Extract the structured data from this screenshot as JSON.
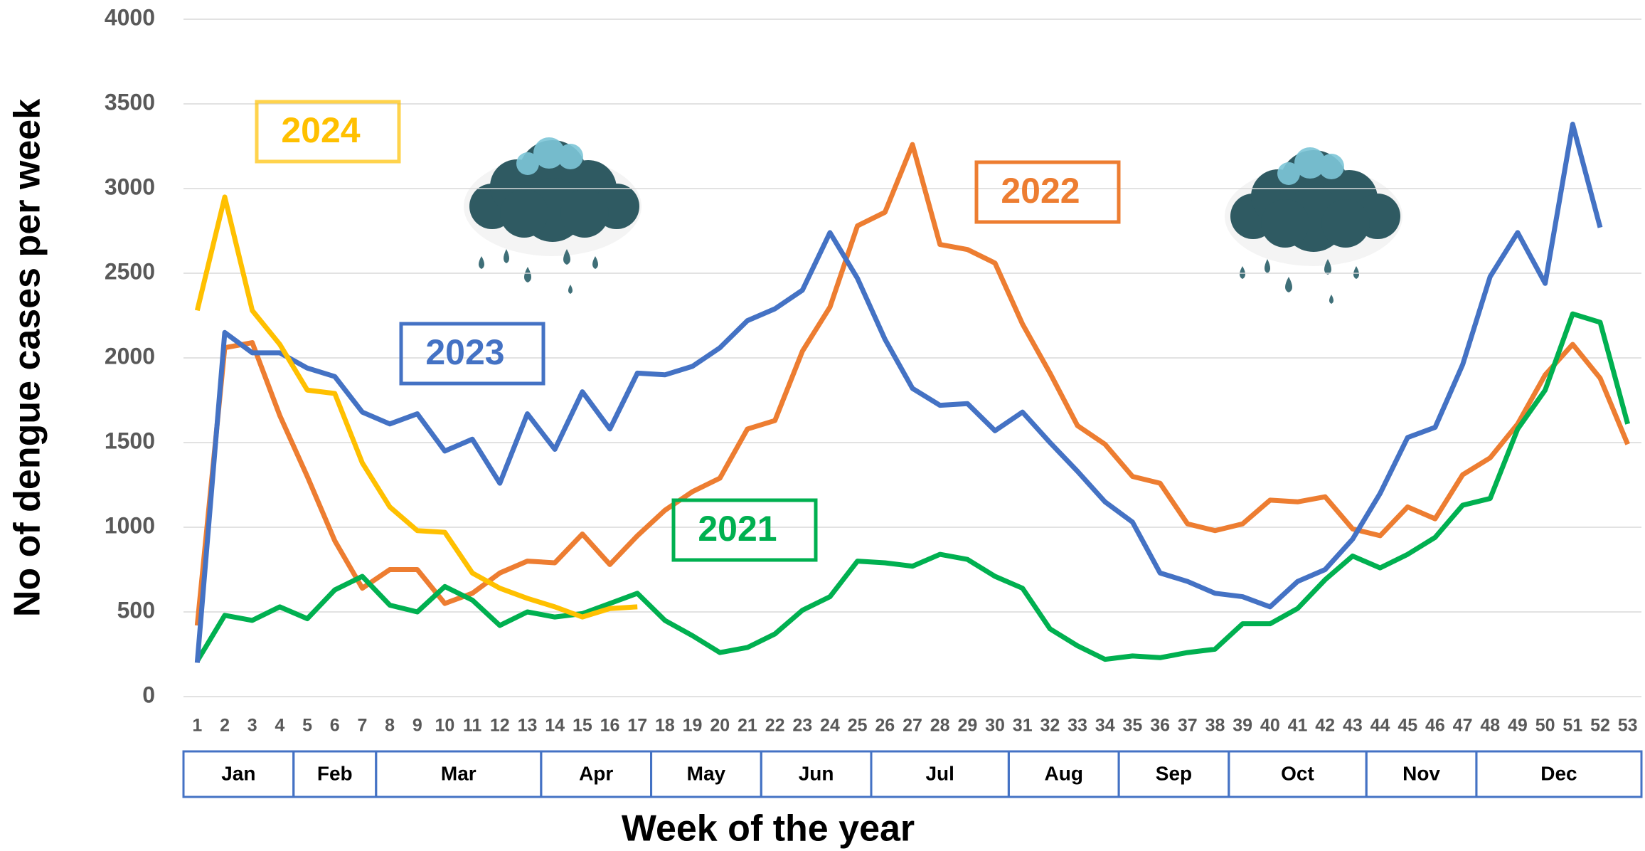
{
  "chart_data": {
    "type": "line",
    "y_label": "No of dengue cases per week",
    "x_label": "Week of the year",
    "x": [
      1,
      2,
      3,
      4,
      5,
      6,
      7,
      8,
      9,
      10,
      11,
      12,
      13,
      14,
      15,
      16,
      17,
      18,
      19,
      20,
      21,
      22,
      23,
      24,
      25,
      26,
      27,
      28,
      29,
      30,
      31,
      32,
      33,
      34,
      35,
      36,
      37,
      38,
      39,
      40,
      41,
      42,
      43,
      44,
      45,
      46,
      47,
      48,
      49,
      50,
      51,
      52,
      53
    ],
    "xlim": [
      0.5,
      53.5
    ],
    "ylim": [
      0,
      4000
    ],
    "yticks": [
      0,
      500,
      1000,
      1500,
      2000,
      2500,
      3000,
      3500,
      4000
    ],
    "grid": true,
    "months": [
      {
        "label": "Jan",
        "first_week": 1,
        "last_week": 4
      },
      {
        "label": "Feb",
        "first_week": 5,
        "last_week": 7
      },
      {
        "label": "Mar",
        "first_week": 8,
        "last_week": 13
      },
      {
        "label": "Apr",
        "first_week": 14,
        "last_week": 17
      },
      {
        "label": "May",
        "first_week": 18,
        "last_week": 21
      },
      {
        "label": "Jun",
        "first_week": 22,
        "last_week": 25
      },
      {
        "label": "Jul",
        "first_week": 26,
        "last_week": 30
      },
      {
        "label": "Aug",
        "first_week": 31,
        "last_week": 34
      },
      {
        "label": "Sep",
        "first_week": 35,
        "last_week": 38
      },
      {
        "label": "Oct",
        "first_week": 39,
        "last_week": 43
      },
      {
        "label": "Nov",
        "first_week": 44,
        "last_week": 47
      },
      {
        "label": "Dec",
        "first_week": 48,
        "last_week": 53
      }
    ],
    "series": [
      {
        "name": "2021",
        "color": "#00b050",
        "values": [
          210,
          480,
          450,
          530,
          460,
          630,
          710,
          540,
          500,
          650,
          570,
          420,
          500,
          470,
          490,
          550,
          610,
          450,
          360,
          260,
          290,
          370,
          510,
          590,
          800,
          790,
          770,
          840,
          810,
          710,
          640,
          400,
          300,
          220,
          240,
          230,
          260,
          280,
          430,
          430,
          520,
          690,
          830,
          760,
          840,
          940,
          1130,
          1170,
          1580,
          1810,
          2260,
          2210,
          1610
        ]
      },
      {
        "name": "2022",
        "color": "#ed7d31",
        "values": [
          420,
          2060,
          2090,
          1660,
          1300,
          920,
          640,
          750,
          750,
          550,
          610,
          730,
          800,
          790,
          960,
          780,
          950,
          1100,
          1210,
          1290,
          1580,
          1630,
          2040,
          2300,
          2780,
          2860,
          3260,
          2670,
          2640,
          2560,
          2200,
          1910,
          1600,
          1490,
          1300,
          1260,
          1020,
          980,
          1020,
          1160,
          1150,
          1180,
          990,
          950,
          1120,
          1050,
          1310,
          1410,
          1610,
          1900,
          2080,
          1880,
          1490
        ]
      },
      {
        "name": "2023",
        "color": "#4472c4",
        "values": [
          200,
          2150,
          2030,
          2030,
          1940,
          1890,
          1680,
          1610,
          1670,
          1450,
          1520,
          1260,
          1670,
          1460,
          1800,
          1580,
          1910,
          1900,
          1950,
          2060,
          2220,
          2290,
          2400,
          2740,
          2470,
          2110,
          1820,
          1720,
          1730,
          1570,
          1680,
          1500,
          1330,
          1150,
          1030,
          730,
          680,
          610,
          590,
          530,
          680,
          750,
          930,
          1200,
          1530,
          1590,
          1960,
          2480,
          2740,
          2440,
          3380,
          2770,
          null
        ]
      },
      {
        "name": "2024",
        "color": "#ffc000",
        "values": [
          2280,
          2950,
          2280,
          2080,
          1810,
          1790,
          1380,
          1120,
          980,
          970,
          730,
          640,
          580,
          530,
          470,
          520,
          530,
          null,
          null,
          null,
          null,
          null,
          null,
          null,
          null,
          null,
          null,
          null,
          null,
          null,
          null,
          null,
          null,
          null,
          null,
          null,
          null,
          null,
          null,
          null,
          null,
          null,
          null,
          null,
          null,
          null,
          null,
          null,
          null,
          null,
          null,
          null,
          null
        ]
      }
    ]
  }
}
